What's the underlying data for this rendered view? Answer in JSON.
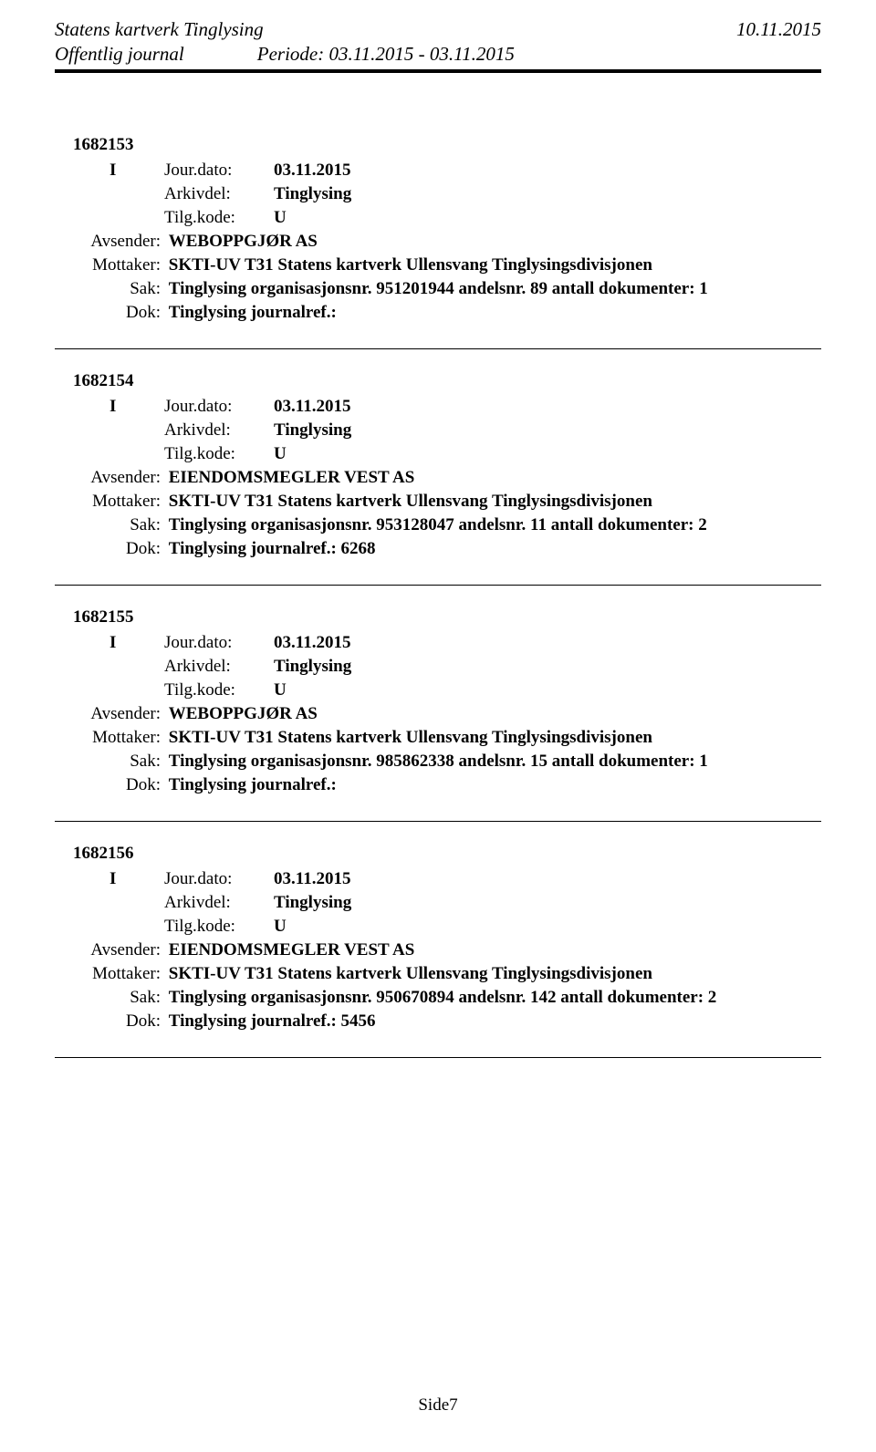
{
  "header": {
    "agency": "Statens kartverk Tinglysing",
    "date": "10.11.2015",
    "journal_type": "Offentlig journal",
    "period_label": "Periode:",
    "period": "03.11.2015 - 03.11.2015"
  },
  "common": {
    "jour_label": "Jour.dato:",
    "arkivdel_label": "Arkivdel:",
    "tilgkode_label": "Tilg.kode:",
    "avsender_label": "Avsender:",
    "mottaker_label": "Mottaker:",
    "sak_label": "Sak:",
    "dok_label": "Dok:",
    "arkivdel_value": "Tinglysing",
    "tilgkode_value": "U",
    "doc_type": "I",
    "jour_date": "03.11.2015",
    "mottaker_value": "SKTI-UV T31 Statens kartverk Ullensvang Tinglysingsdivisjonen"
  },
  "entries": [
    {
      "id": "1682153",
      "avsender": "WEBOPPGJØR AS",
      "sak": "Tinglysing organisasjonsnr. 951201944 andelsnr. 89 antall dokumenter: 1",
      "dok": "Tinglysing journalref.:"
    },
    {
      "id": "1682154",
      "avsender": "EIENDOMSMEGLER VEST AS",
      "sak": "Tinglysing organisasjonsnr. 953128047 andelsnr. 11 antall dokumenter: 2",
      "dok": "Tinglysing journalref.: 6268"
    },
    {
      "id": "1682155",
      "avsender": "WEBOPPGJØR AS",
      "sak": "Tinglysing organisasjonsnr. 985862338 andelsnr. 15 antall dokumenter: 1",
      "dok": "Tinglysing journalref.:"
    },
    {
      "id": "1682156",
      "avsender": "EIENDOMSMEGLER VEST AS",
      "sak": "Tinglysing organisasjonsnr. 950670894 andelsnr. 142 antall dokumenter: 2",
      "dok": "Tinglysing journalref.: 5456"
    }
  ],
  "footer": {
    "page": "Side7"
  }
}
